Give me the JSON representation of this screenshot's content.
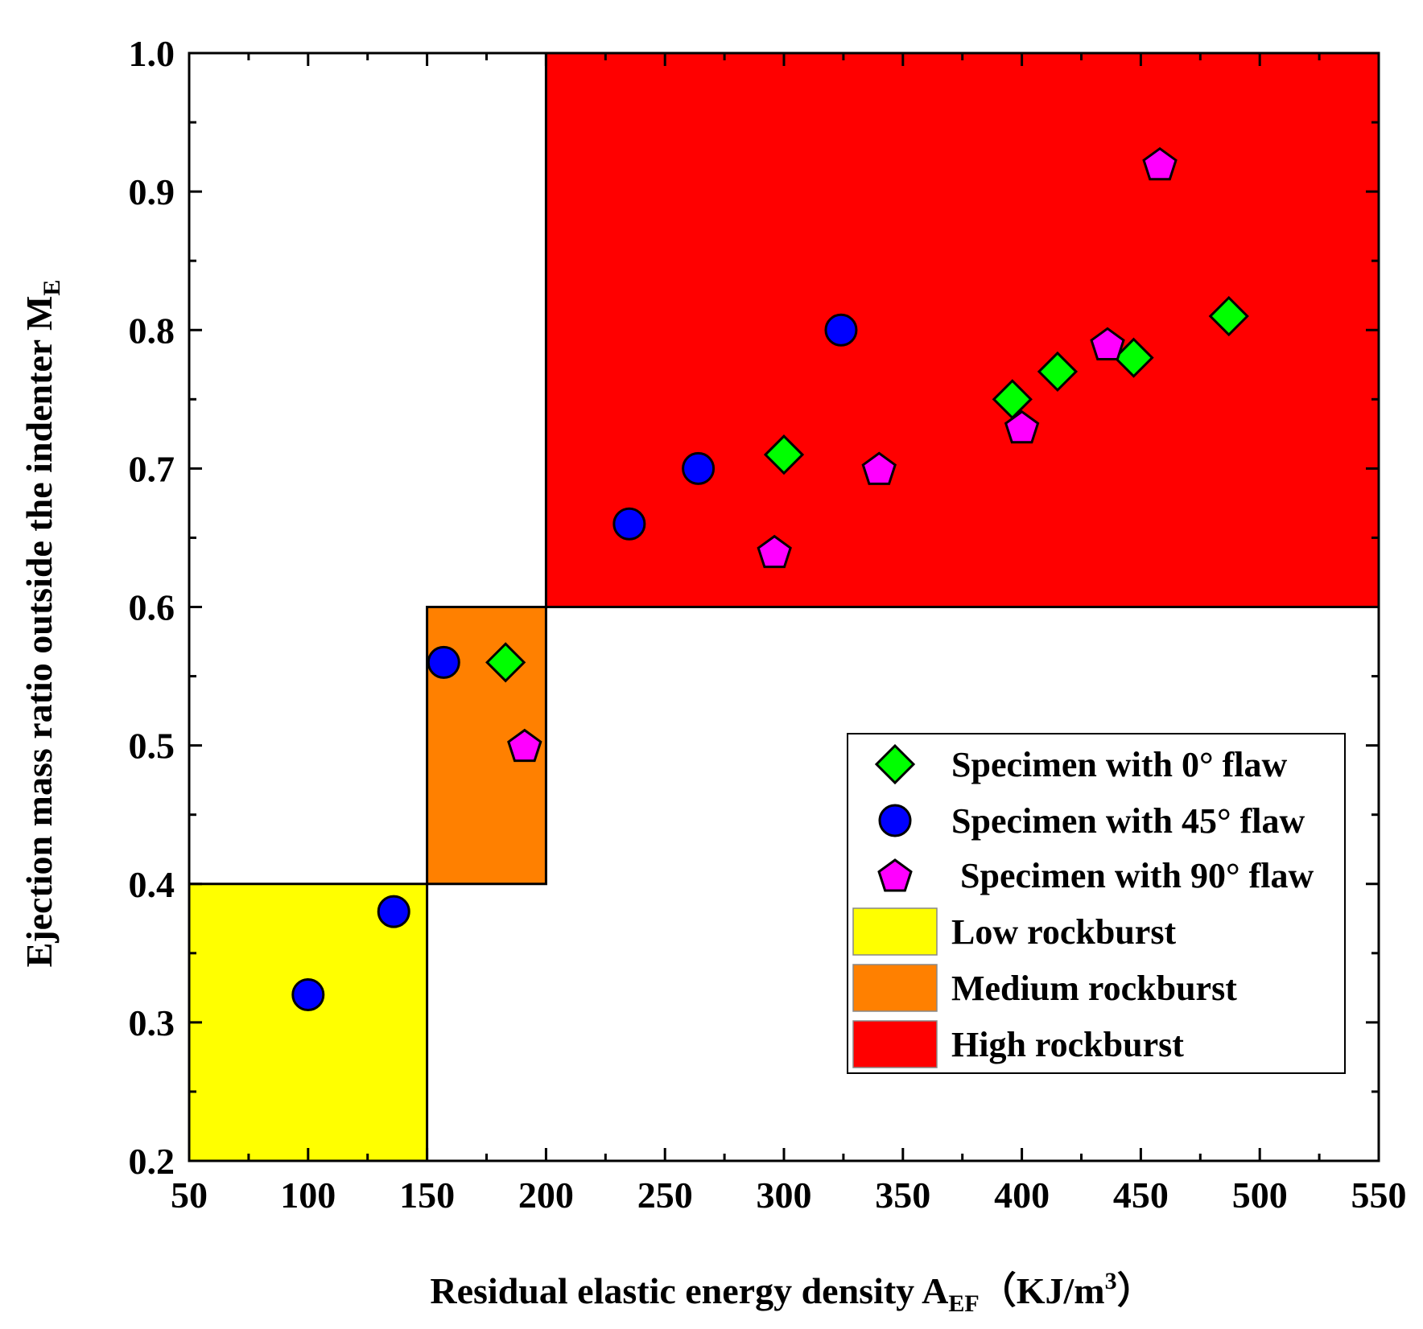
{
  "chart_data": {
    "type": "scatter",
    "xlabel": {
      "main": "Residual elastic energy density A",
      "sub": "EF",
      "unit_pre": "（KJ/m",
      "unit_sup": "3",
      "unit_post": "）"
    },
    "ylabel": {
      "main": "Ejection mass ratio outside the indenter M",
      "sub": "E"
    },
    "xlim": [
      50,
      550
    ],
    "ylim": [
      0.2,
      1.0
    ],
    "xticks": [
      50,
      100,
      150,
      200,
      250,
      300,
      350,
      400,
      450,
      500,
      550
    ],
    "xtick_labels": [
      "50",
      "100",
      "150",
      "200",
      "250",
      "300",
      "350",
      "400",
      "450",
      "500",
      "550"
    ],
    "yticks": [
      0.2,
      0.3,
      0.4,
      0.5,
      0.6,
      0.7,
      0.8,
      0.9,
      1.0
    ],
    "ytick_labels": [
      "0.2",
      "0.3",
      "0.4",
      "0.5",
      "0.6",
      "0.7",
      "0.8",
      "0.9",
      "1.0"
    ],
    "regions": [
      {
        "name": "Low rockburst",
        "x": [
          50,
          150
        ],
        "y": [
          0.2,
          0.4
        ],
        "color": "#ffff00"
      },
      {
        "name": "Medium rockburst",
        "x": [
          150,
          200
        ],
        "y": [
          0.4,
          0.6
        ],
        "color": "#ff8000"
      },
      {
        "name": "High rockburst",
        "x": [
          200,
          550
        ],
        "y": [
          0.6,
          1.0
        ],
        "color": "#ff0000"
      }
    ],
    "series": [
      {
        "name": "Specimen with 0° flaw",
        "marker": "diamond",
        "color": "#00ff00",
        "points": [
          [
            183,
            0.56
          ],
          [
            300,
            0.71
          ],
          [
            396,
            0.75
          ],
          [
            415,
            0.77
          ],
          [
            447,
            0.78
          ],
          [
            487,
            0.81
          ]
        ]
      },
      {
        "name": "Specimen with 45° flaw",
        "marker": "circle",
        "color": "#0000ff",
        "points": [
          [
            100,
            0.32
          ],
          [
            136,
            0.38
          ],
          [
            157,
            0.56
          ],
          [
            235,
            0.66
          ],
          [
            264,
            0.7
          ],
          [
            324,
            0.8
          ]
        ]
      },
      {
        "name": "Specimen with 90° flaw",
        "marker": "pentagon",
        "color": "#ff00ff",
        "points": [
          [
            191,
            0.5
          ],
          [
            296,
            0.64
          ],
          [
            340,
            0.7
          ],
          [
            400,
            0.73
          ],
          [
            436,
            0.79
          ],
          [
            458,
            0.92
          ]
        ]
      }
    ],
    "legend": {
      "position": "bottom-right",
      "entries": [
        {
          "label": "Specimen with 0° flaw",
          "kind": "marker",
          "ref": 0
        },
        {
          "label": "Specimen with 45° flaw",
          "kind": "marker",
          "ref": 1
        },
        {
          "label": " Specimen with 90° flaw",
          "kind": "marker",
          "ref": 2
        },
        {
          "label": "Low rockburst",
          "kind": "patch",
          "color": "#ffff00"
        },
        {
          "label": "Medium rockburst",
          "kind": "patch",
          "color": "#ff8000"
        },
        {
          "label": "High rockburst",
          "kind": "patch",
          "color": "#ff0000"
        }
      ]
    }
  }
}
